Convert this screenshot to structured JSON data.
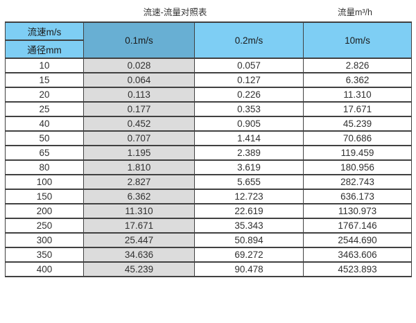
{
  "title": "流速-流量对照表",
  "unit_label": "流量m³/h",
  "colors": {
    "header_blue": "#7ECEF4",
    "header_blue_dark": "#68AFD3",
    "col_gray": "#DCDCDC",
    "border": "#404040"
  },
  "header": {
    "corner_top": "流速m/s",
    "corner_bottom": "通径mm",
    "columns": [
      "0.1m/s",
      "0.2m/s",
      "10m/s"
    ]
  },
  "chart_data": {
    "type": "table",
    "title": "流速-流量对照表",
    "unit": "流量m³/h",
    "corner_top": "流速m/s",
    "corner_bottom": "通径mm",
    "columns": [
      "通径mm",
      "0.1m/s",
      "0.2m/s",
      "10m/s"
    ],
    "rows": [
      [
        "10",
        "0.028",
        "0.057",
        "2.826"
      ],
      [
        "15",
        "0.064",
        "0.127",
        "6.362"
      ],
      [
        "20",
        "0.113",
        "0.226",
        "11.310"
      ],
      [
        "25",
        "0.177",
        "0.353",
        "17.671"
      ],
      [
        "40",
        "0.452",
        "0.905",
        "45.239"
      ],
      [
        "50",
        "0.707",
        "1.414",
        "70.686"
      ],
      [
        "65",
        "1.195",
        "2.389",
        "119.459"
      ],
      [
        "80",
        "1.810",
        "3.619",
        "180.956"
      ],
      [
        "100",
        "2.827",
        "5.655",
        "282.743"
      ],
      [
        "150",
        "6.362",
        "12.723",
        "636.173"
      ],
      [
        "200",
        "11.310",
        "22.619",
        "1130.973"
      ],
      [
        "250",
        "17.671",
        "35.343",
        "1767.146"
      ],
      [
        "300",
        "25.447",
        "50.894",
        "2544.690"
      ],
      [
        "350",
        "34.636",
        "69.272",
        "3463.606"
      ],
      [
        "400",
        "45.239",
        "90.478",
        "4523.893"
      ]
    ]
  }
}
